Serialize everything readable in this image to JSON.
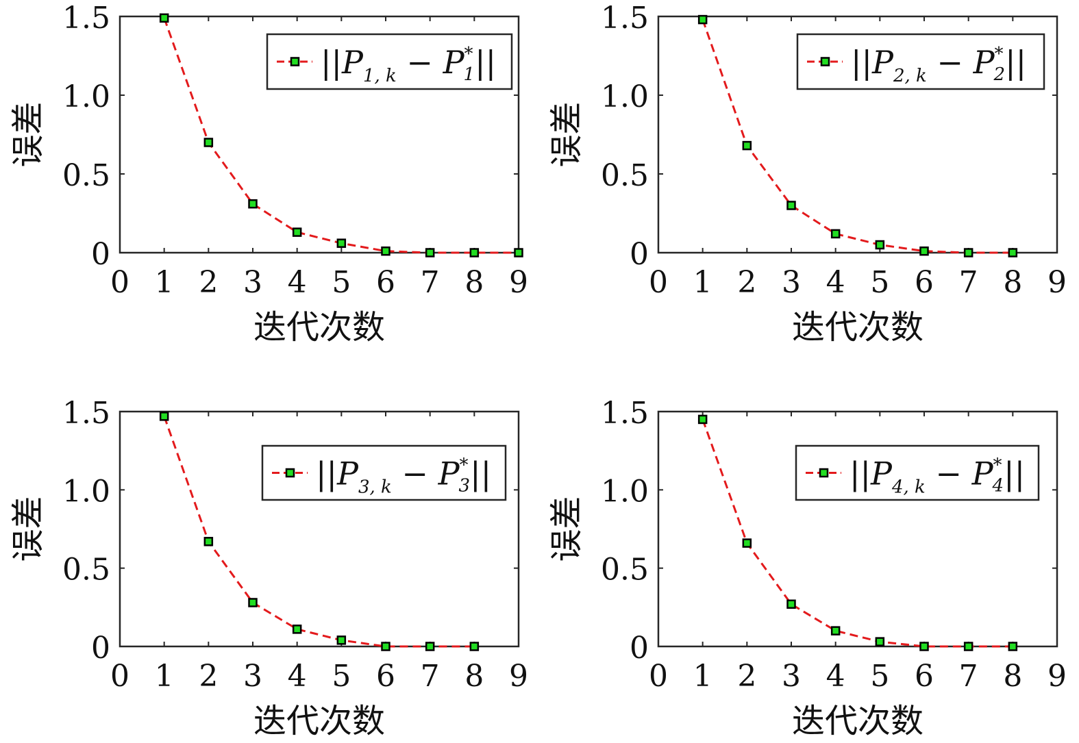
{
  "colors": {
    "axis": "#262626",
    "line": "#e31a1c",
    "marker_fill": "#22dd22",
    "marker_edge": "#000000"
  },
  "chart_data": [
    {
      "type": "line",
      "xlabel": "迭代次数",
      "ylabel": "误差",
      "xlim": [
        0,
        9
      ],
      "ylim": [
        0,
        1.5
      ],
      "xticks": [
        "0",
        "1",
        "2",
        "3",
        "4",
        "5",
        "6",
        "7",
        "8",
        "9"
      ],
      "yticks": [
        "0",
        "0.5",
        "1.0",
        "1.5"
      ],
      "legend_position": "top-right",
      "series": [
        {
          "name": {
            "lead": "||P",
            "sub1": "1, k",
            "mid": " − P",
            "sup": "*",
            "sub2": "1",
            "tail": "||"
          },
          "line_style": "dashed",
          "marker": "square",
          "x": [
            1,
            2,
            3,
            4,
            5,
            6,
            7,
            8,
            9
          ],
          "y": [
            1.49,
            0.7,
            0.31,
            0.13,
            0.06,
            0.01,
            0.0,
            0.0,
            0.0
          ]
        }
      ]
    },
    {
      "type": "line",
      "xlabel": "迭代次数",
      "ylabel": "误差",
      "xlim": [
        0,
        9
      ],
      "ylim": [
        0,
        1.5
      ],
      "xticks": [
        "0",
        "1",
        "2",
        "3",
        "4",
        "5",
        "6",
        "7",
        "8",
        "9"
      ],
      "yticks": [
        "0",
        "0.5",
        "1.0",
        "1.5"
      ],
      "legend_position": "top-right",
      "series": [
        {
          "name": {
            "lead": "||P",
            "sub1": "2, k",
            "mid": " − P",
            "sup": "*",
            "sub2": "2",
            "tail": "||"
          },
          "line_style": "dashed",
          "marker": "square",
          "x": [
            1,
            2,
            3,
            4,
            5,
            6,
            7,
            8
          ],
          "y": [
            1.48,
            0.68,
            0.3,
            0.12,
            0.05,
            0.01,
            0.0,
            0.0
          ]
        }
      ]
    },
    {
      "type": "line",
      "xlabel": "迭代次数",
      "ylabel": "误差",
      "xlim": [
        0,
        9
      ],
      "ylim": [
        0,
        1.5
      ],
      "xticks": [
        "0",
        "1",
        "2",
        "3",
        "4",
        "5",
        "6",
        "7",
        "8",
        "9"
      ],
      "yticks": [
        "0",
        "0.5",
        "1.0",
        "1.5"
      ],
      "legend_position": "top-right",
      "series": [
        {
          "name": {
            "lead": "||P",
            "sub1": "3, k",
            "mid": " − P",
            "sup": "*",
            "sub2": "3",
            "tail": "||"
          },
          "line_style": "dashed",
          "marker": "square",
          "x": [
            1,
            2,
            3,
            4,
            5,
            6,
            7,
            8
          ],
          "y": [
            1.47,
            0.67,
            0.28,
            0.11,
            0.04,
            0.0,
            0.0,
            0.0
          ]
        }
      ]
    },
    {
      "type": "line",
      "xlabel": "迭代次数",
      "ylabel": "误差",
      "xlim": [
        0,
        9
      ],
      "ylim": [
        0,
        1.5
      ],
      "xticks": [
        "0",
        "1",
        "2",
        "3",
        "4",
        "5",
        "6",
        "7",
        "8",
        "9"
      ],
      "yticks": [
        "0",
        "0.5",
        "1.0",
        "1.5"
      ],
      "legend_position": "top-right",
      "series": [
        {
          "name": {
            "lead": "||P",
            "sub1": "4, k",
            "mid": " − P",
            "sup": "*",
            "sub2": "4",
            "tail": "||"
          },
          "line_style": "dashed",
          "marker": "square",
          "x": [
            1,
            2,
            3,
            4,
            5,
            6,
            7,
            8
          ],
          "y": [
            1.45,
            0.66,
            0.27,
            0.1,
            0.03,
            0.0,
            0.0,
            0.0
          ]
        }
      ]
    }
  ]
}
